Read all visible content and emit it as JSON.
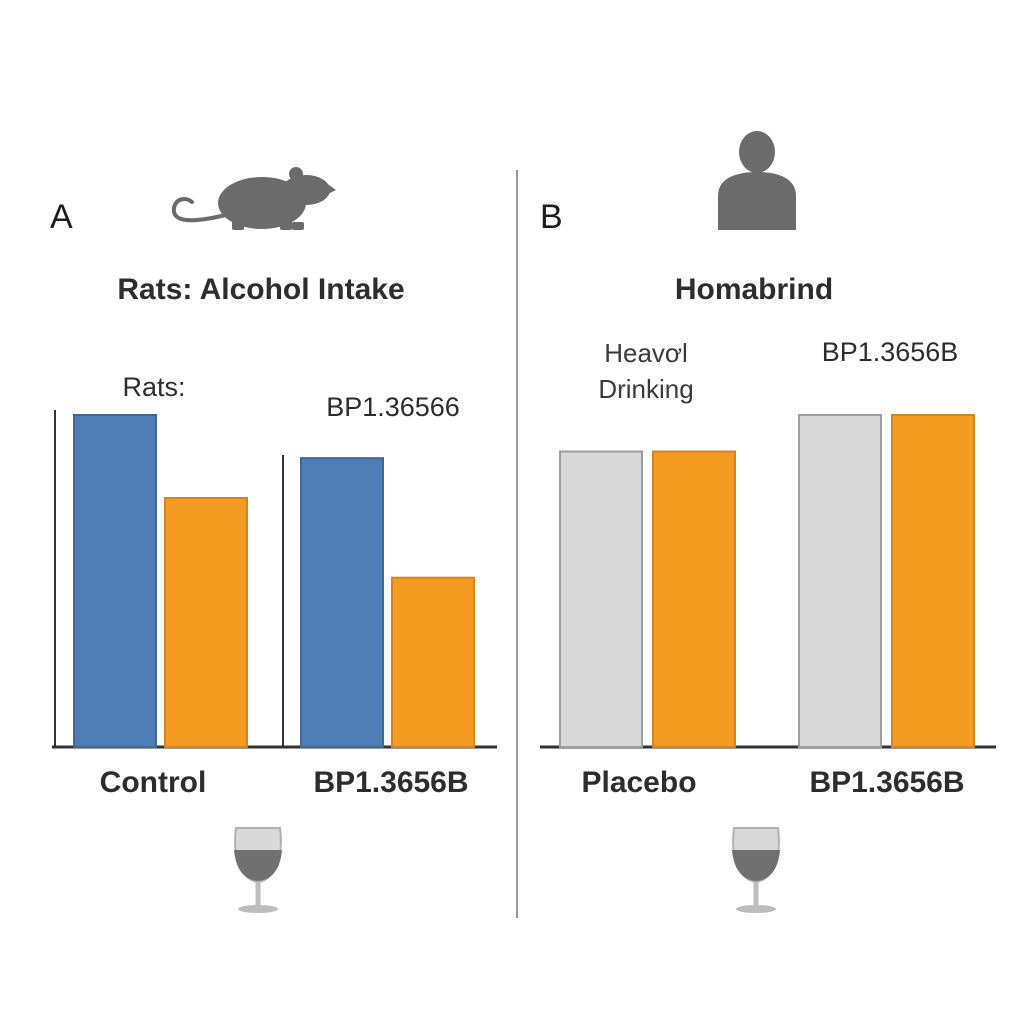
{
  "colors": {
    "control_blue": "#4d7db4",
    "treatment_orange": "#f49b22",
    "placebo_gray": "#d8d8d8",
    "icon_gray": "#6b6b6b",
    "divider": "#9a9a9a"
  },
  "icons": {
    "panel_a": "rat-icon",
    "panel_b": "person-icon",
    "glass_a": "wine-glass-icon",
    "glass_b": "wine-glass-icon"
  },
  "chart_data": [
    {
      "type": "bar",
      "panel": "A",
      "title": "Rats: Alcohol Intake",
      "annotations": [
        "Rats:",
        "BP1.36566"
      ],
      "categories": [
        "Control",
        "BP1.3656B"
      ],
      "series": [
        {
          "values": [
            100,
            87
          ]
        },
        {
          "values": [
            75,
            51
          ]
        }
      ],
      "ylim": [
        0,
        100
      ],
      "grid": false,
      "legend": "none"
    },
    {
      "type": "bar",
      "panel": "B",
      "title": "Homabrind",
      "annotations": [
        "Heavơl",
        "Drinking",
        "BP1.3656B"
      ],
      "categories": [
        "Placebo",
        "BP1.3656B"
      ],
      "series": [
        {
          "values": [
            89,
            100
          ]
        },
        {
          "values": [
            89,
            100
          ]
        }
      ],
      "ylim": [
        0,
        100
      ],
      "grid": false,
      "legend": "none"
    }
  ]
}
